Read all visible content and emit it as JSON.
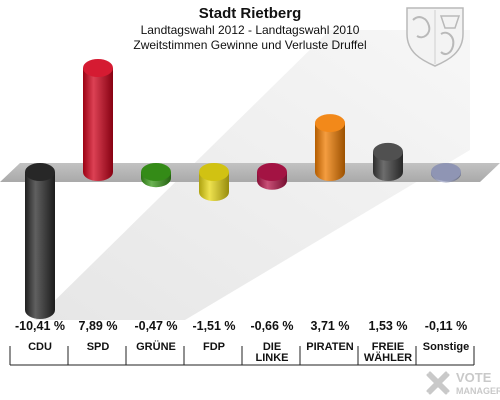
{
  "chart_data": {
    "type": "bar",
    "title": "Stadt Rietberg",
    "subtitle_lines": [
      "Landtagswahl 2012 - Landtagswahl 2010",
      "Zweitstimmen Gewinne und Verluste Druffel"
    ],
    "categories": [
      [
        "CDU"
      ],
      [
        "SPD"
      ],
      [
        "GRÜNE"
      ],
      [
        "FDP"
      ],
      [
        "DIE",
        "LINKE"
      ],
      [
        "PIRATEN"
      ],
      [
        "FREIE",
        "WÄHLER"
      ],
      [
        "Sonstige"
      ]
    ],
    "value_labels": [
      "-10,41 %",
      "7,89 %",
      "-0,47 %",
      "-1,51 %",
      "-0,66 %",
      "3,71 %",
      "1,53 %",
      "-0,11 %"
    ],
    "values": [
      -10.41,
      7.89,
      -0.47,
      -1.51,
      -0.66,
      3.71,
      1.53,
      -0.11
    ],
    "colors": [
      "#2b2b2b",
      "#d0021b",
      "#3a9a1a",
      "#e8d814",
      "#b5154a",
      "#f07c00",
      "#3c3c3c",
      "#9fa6c8"
    ],
    "xlabel": "",
    "ylabel": "",
    "ylim": [
      -10.41,
      7.89
    ],
    "grid": false,
    "legend": "none"
  },
  "watermark": {
    "line1": "VOTE",
    "line2": "MANAGER"
  }
}
